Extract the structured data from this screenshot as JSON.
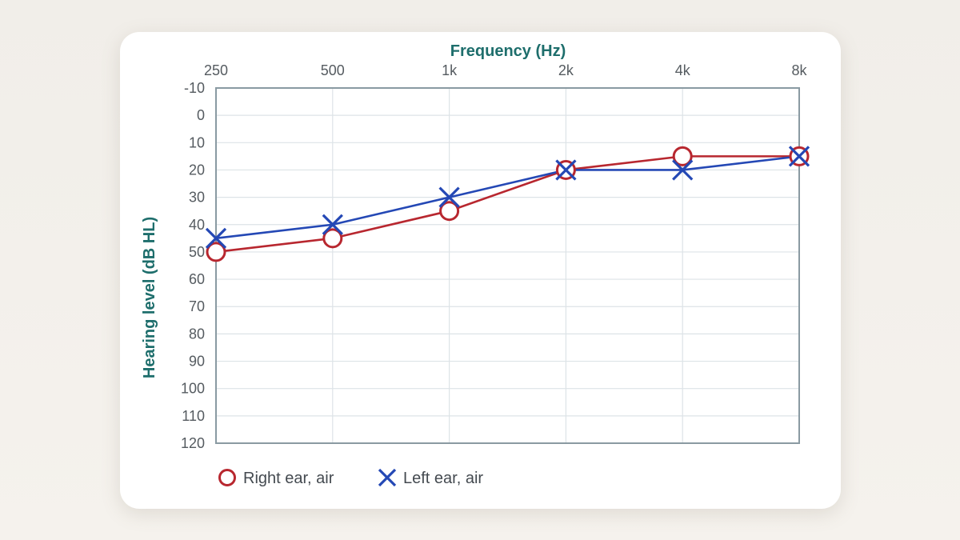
{
  "chart_data": {
    "type": "line",
    "xlabel": "Frequency (Hz)",
    "ylabel": "Hearing level (dB HL)",
    "categories": [
      "250",
      "500",
      "1k",
      "2k",
      "4k",
      "8k"
    ],
    "y_ticks": [
      "-10",
      "0",
      "10",
      "20",
      "30",
      "40",
      "50",
      "60",
      "70",
      "80",
      "90",
      "100",
      "110",
      "120"
    ],
    "ylim": [
      -10,
      120
    ],
    "y_inverted": true,
    "x_axis_position": "top",
    "grid": true,
    "legend_position": "bottom-left",
    "series": [
      {
        "name": "Right ear, air",
        "marker": "circle",
        "color": "#b8272f",
        "values": [
          50,
          45,
          35,
          20,
          15,
          15
        ]
      },
      {
        "name": "Left ear, air",
        "marker": "x",
        "color": "#2448b5",
        "values": [
          45,
          40,
          30,
          20,
          20,
          15
        ]
      }
    ]
  },
  "colors": {
    "axis_title": "#1e6e6c",
    "grid": "#dde3e7",
    "frame": "#8a9aa2"
  }
}
